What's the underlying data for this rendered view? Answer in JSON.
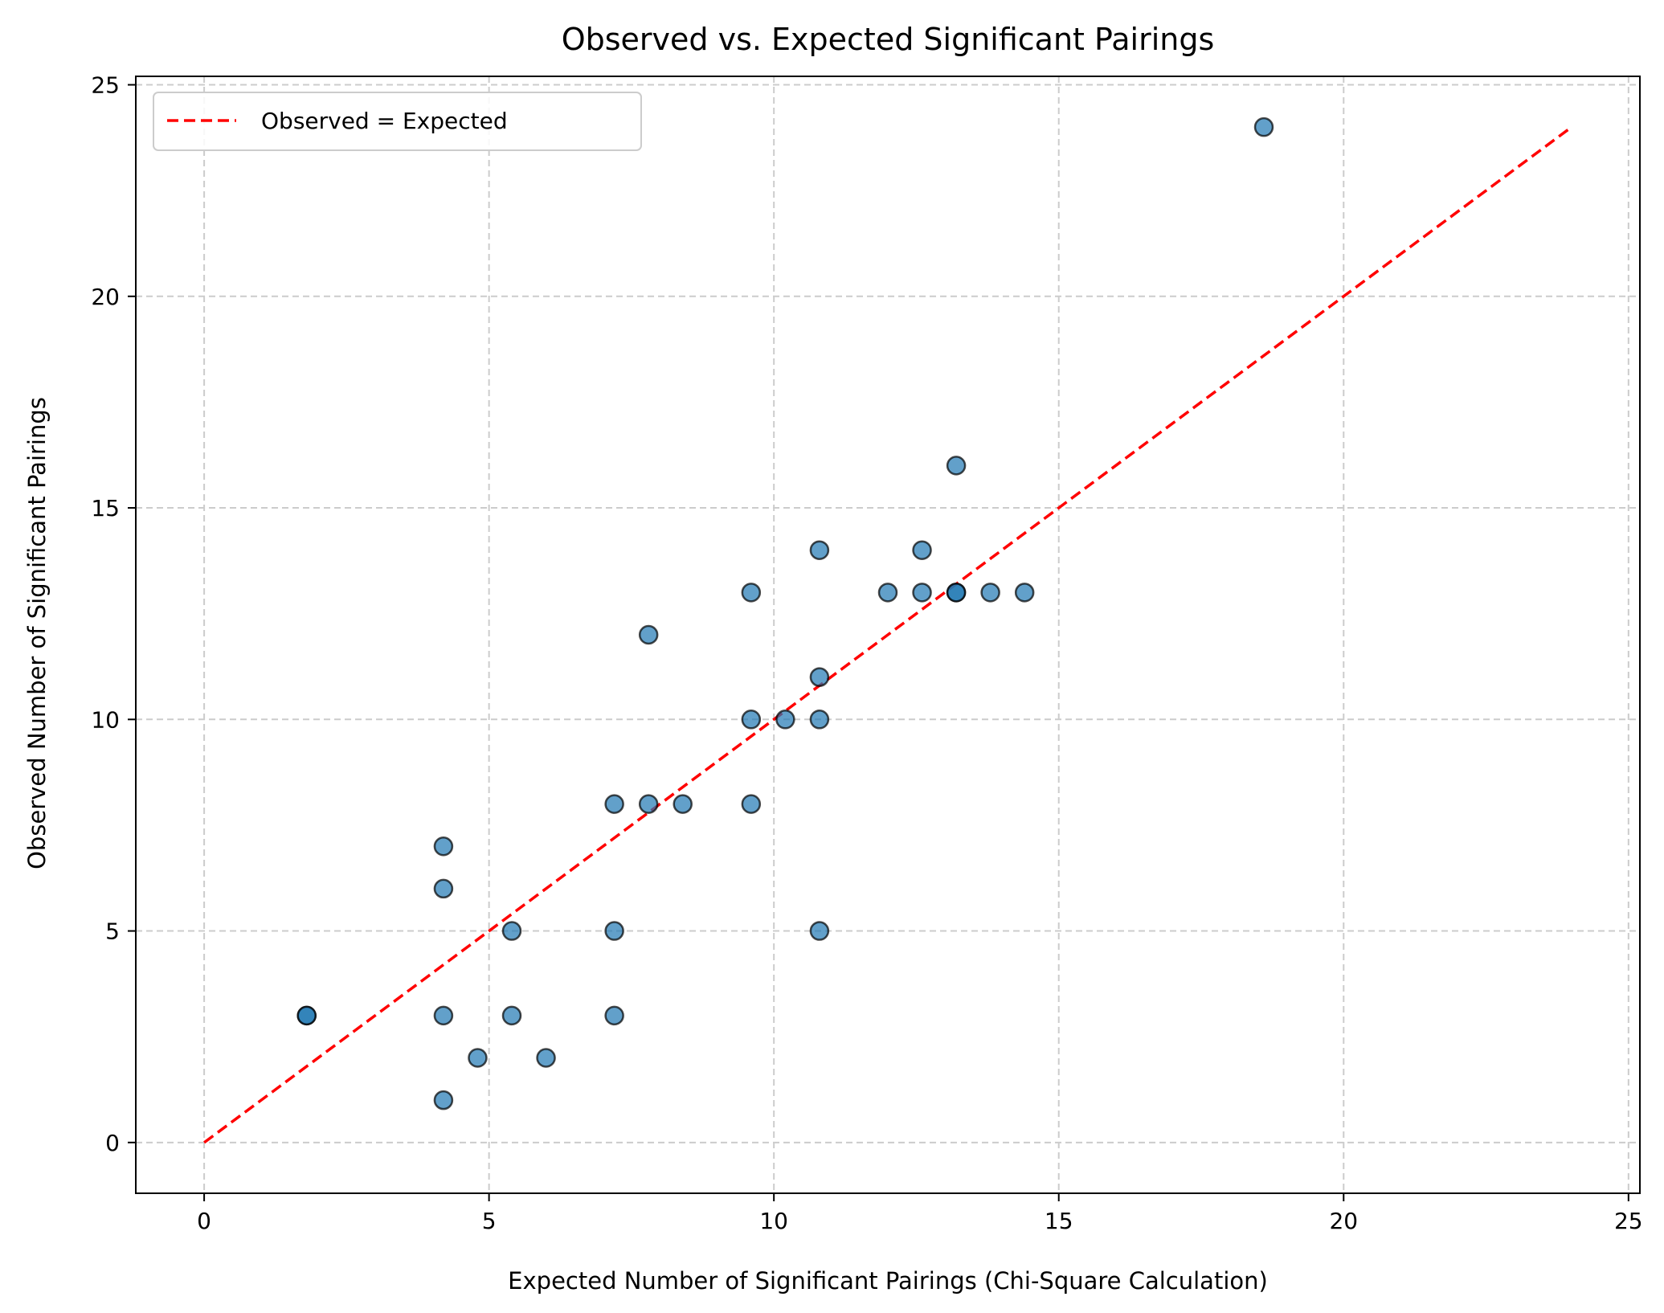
{
  "chart_data": {
    "type": "scatter",
    "title": "Observed vs. Expected Significant Pairings",
    "xlabel": "Expected Number of Significant Pairings (Chi-Square Calculation)",
    "ylabel": "Observed Number of Significant Pairings",
    "xlim": [
      -1.2,
      25.2
    ],
    "ylim": [
      -1.2,
      25.2
    ],
    "xticks": [
      0,
      5,
      10,
      15,
      20,
      25
    ],
    "yticks": [
      0,
      5,
      10,
      15,
      20,
      25
    ],
    "grid": true,
    "legend_position": "top-left",
    "legend_label": "Observed = Expected",
    "reference_line": {
      "x": [
        0,
        24
      ],
      "y": [
        0,
        24
      ],
      "color": "#ff0000",
      "style": "dashed"
    },
    "point_color": "#1f77b4",
    "points": [
      {
        "x": 1.8,
        "y": 3
      },
      {
        "x": 1.8,
        "y": 3
      },
      {
        "x": 4.2,
        "y": 1
      },
      {
        "x": 4.2,
        "y": 3
      },
      {
        "x": 4.2,
        "y": 6
      },
      {
        "x": 4.2,
        "y": 7
      },
      {
        "x": 4.8,
        "y": 2
      },
      {
        "x": 5.4,
        "y": 3
      },
      {
        "x": 5.4,
        "y": 5
      },
      {
        "x": 6.0,
        "y": 2
      },
      {
        "x": 7.2,
        "y": 3
      },
      {
        "x": 7.2,
        "y": 5
      },
      {
        "x": 7.2,
        "y": 8
      },
      {
        "x": 7.8,
        "y": 8
      },
      {
        "x": 7.8,
        "y": 12
      },
      {
        "x": 8.4,
        "y": 8
      },
      {
        "x": 9.6,
        "y": 8
      },
      {
        "x": 9.6,
        "y": 10
      },
      {
        "x": 9.6,
        "y": 13
      },
      {
        "x": 10.2,
        "y": 10
      },
      {
        "x": 10.8,
        "y": 5
      },
      {
        "x": 10.8,
        "y": 10
      },
      {
        "x": 10.8,
        "y": 11
      },
      {
        "x": 10.8,
        "y": 14
      },
      {
        "x": 12.0,
        "y": 13
      },
      {
        "x": 12.6,
        "y": 13
      },
      {
        "x": 12.6,
        "y": 14
      },
      {
        "x": 13.2,
        "y": 13
      },
      {
        "x": 13.2,
        "y": 13
      },
      {
        "x": 13.2,
        "y": 16
      },
      {
        "x": 13.8,
        "y": 13
      },
      {
        "x": 14.4,
        "y": 13
      },
      {
        "x": 18.6,
        "y": 24
      }
    ]
  }
}
